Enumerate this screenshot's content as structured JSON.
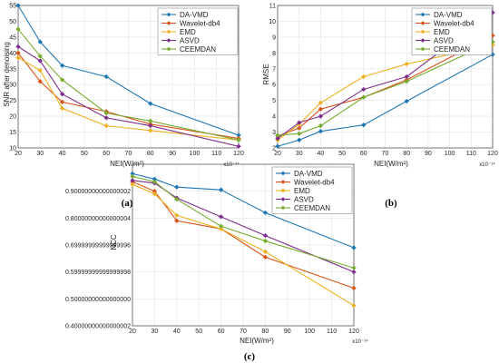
{
  "chart_data": [
    {
      "type": "line",
      "panel_label": "(a)",
      "xlabel": "NEI(W/m²)",
      "ylabel": "SNR after denoising",
      "x_multiplier": "x10⁻¹⁴",
      "xlim": [
        20,
        120
      ],
      "ylim": [
        10,
        55
      ],
      "xticks": [
        20,
        30,
        40,
        50,
        60,
        70,
        80,
        90,
        100,
        110,
        120
      ],
      "yticks": [
        10,
        15,
        20,
        25,
        30,
        35,
        40,
        45,
        50,
        55
      ],
      "x": [
        20,
        30,
        40,
        60,
        80,
        120
      ],
      "series": [
        {
          "name": "DA-VMD",
          "color": "#1f77b4",
          "marker": "diamond",
          "values": [
            55,
            43.5,
            36,
            32.5,
            24,
            14
          ]
        },
        {
          "name": "Wavelet-db4",
          "color": "#d95319",
          "marker": "diamond",
          "values": [
            40,
            31,
            24.5,
            21.5,
            17.5,
            13
          ]
        },
        {
          "name": "EMD",
          "color": "#edb120",
          "marker": "diamond",
          "values": [
            38.5,
            34.5,
            22.5,
            17,
            15.5,
            12.5
          ]
        },
        {
          "name": "ASVD",
          "color": "#7e2f8e",
          "marker": "diamond",
          "values": [
            42,
            37.5,
            27,
            19.5,
            17,
            10.5
          ]
        },
        {
          "name": "CEEMDAN",
          "color": "#77ac30",
          "marker": "diamond",
          "values": [
            47.5,
            39,
            31.5,
            21,
            18.5,
            12.5
          ]
        }
      ]
    },
    {
      "type": "line",
      "panel_label": "(b)",
      "xlabel": "NEI(W/m²)",
      "ylabel": "RMSE",
      "x_multiplier": "x10⁻¹⁴",
      "xlim": [
        20,
        120
      ],
      "ylim": [
        2,
        11
      ],
      "xticks": [
        20,
        30,
        40,
        50,
        60,
        70,
        80,
        90,
        100,
        110,
        120
      ],
      "yticks": [
        2,
        3,
        4,
        5,
        6,
        7,
        8,
        9,
        10,
        11
      ],
      "x": [
        20,
        30,
        40,
        60,
        80,
        120
      ],
      "series": [
        {
          "name": "DA-VMD",
          "color": "#1f77b4",
          "marker": "diamond",
          "values": [
            2.1,
            2.5,
            3.05,
            3.45,
            4.95,
            7.9
          ]
        },
        {
          "name": "Wavelet-db4",
          "color": "#d95319",
          "marker": "diamond",
          "values": [
            2.75,
            3.25,
            4.45,
            5.2,
            6.3,
            9.1
          ]
        },
        {
          "name": "EMD",
          "color": "#edb120",
          "marker": "diamond",
          "values": [
            2.5,
            3.5,
            4.85,
            6.5,
            7.3,
            8.5
          ]
        },
        {
          "name": "ASVD",
          "color": "#7e2f8e",
          "marker": "diamond",
          "values": [
            2.6,
            3.6,
            4.0,
            5.7,
            6.5,
            10.55
          ]
        },
        {
          "name": "CEEMDAN",
          "color": "#77ac30",
          "marker": "diamond",
          "values": [
            2.8,
            2.9,
            3.4,
            5.2,
            6.2,
            8.7
          ]
        }
      ]
    },
    {
      "type": "line",
      "panel_label": "(c)",
      "xlabel": "NEI(W/m²)",
      "ylabel": "NCC",
      "x_multiplier": "x10⁻¹⁴",
      "xlim": [
        20,
        120
      ],
      "ylim": [
        0.4,
        1.0
      ],
      "xticks": [
        20,
        30,
        40,
        50,
        60,
        70,
        80,
        90,
        100,
        110,
        120
      ],
      "yticks": [
        0.4,
        0.5,
        0.6,
        0.7,
        0.8,
        0.9
      ],
      "x": [
        20,
        30,
        40,
        60,
        80,
        120
      ],
      "series": [
        {
          "name": "DA-VMD",
          "color": "#1f77b4",
          "marker": "diamond",
          "values": [
            0.965,
            0.945,
            0.915,
            0.905,
            0.82,
            0.69
          ]
        },
        {
          "name": "Wavelet-db4",
          "color": "#d95319",
          "marker": "diamond",
          "values": [
            0.935,
            0.9,
            0.79,
            0.76,
            0.655,
            0.54
          ]
        },
        {
          "name": "EMD",
          "color": "#edb120",
          "marker": "diamond",
          "values": [
            0.925,
            0.89,
            0.81,
            0.76,
            0.675,
            0.475
          ]
        },
        {
          "name": "ASVD",
          "color": "#7e2f8e",
          "marker": "diamond",
          "values": [
            0.94,
            0.93,
            0.875,
            0.805,
            0.735,
            0.6
          ]
        },
        {
          "name": "CEEMDAN",
          "color": "#77ac30",
          "marker": "diamond",
          "values": [
            0.955,
            0.935,
            0.87,
            0.77,
            0.715,
            0.615
          ]
        }
      ]
    }
  ]
}
